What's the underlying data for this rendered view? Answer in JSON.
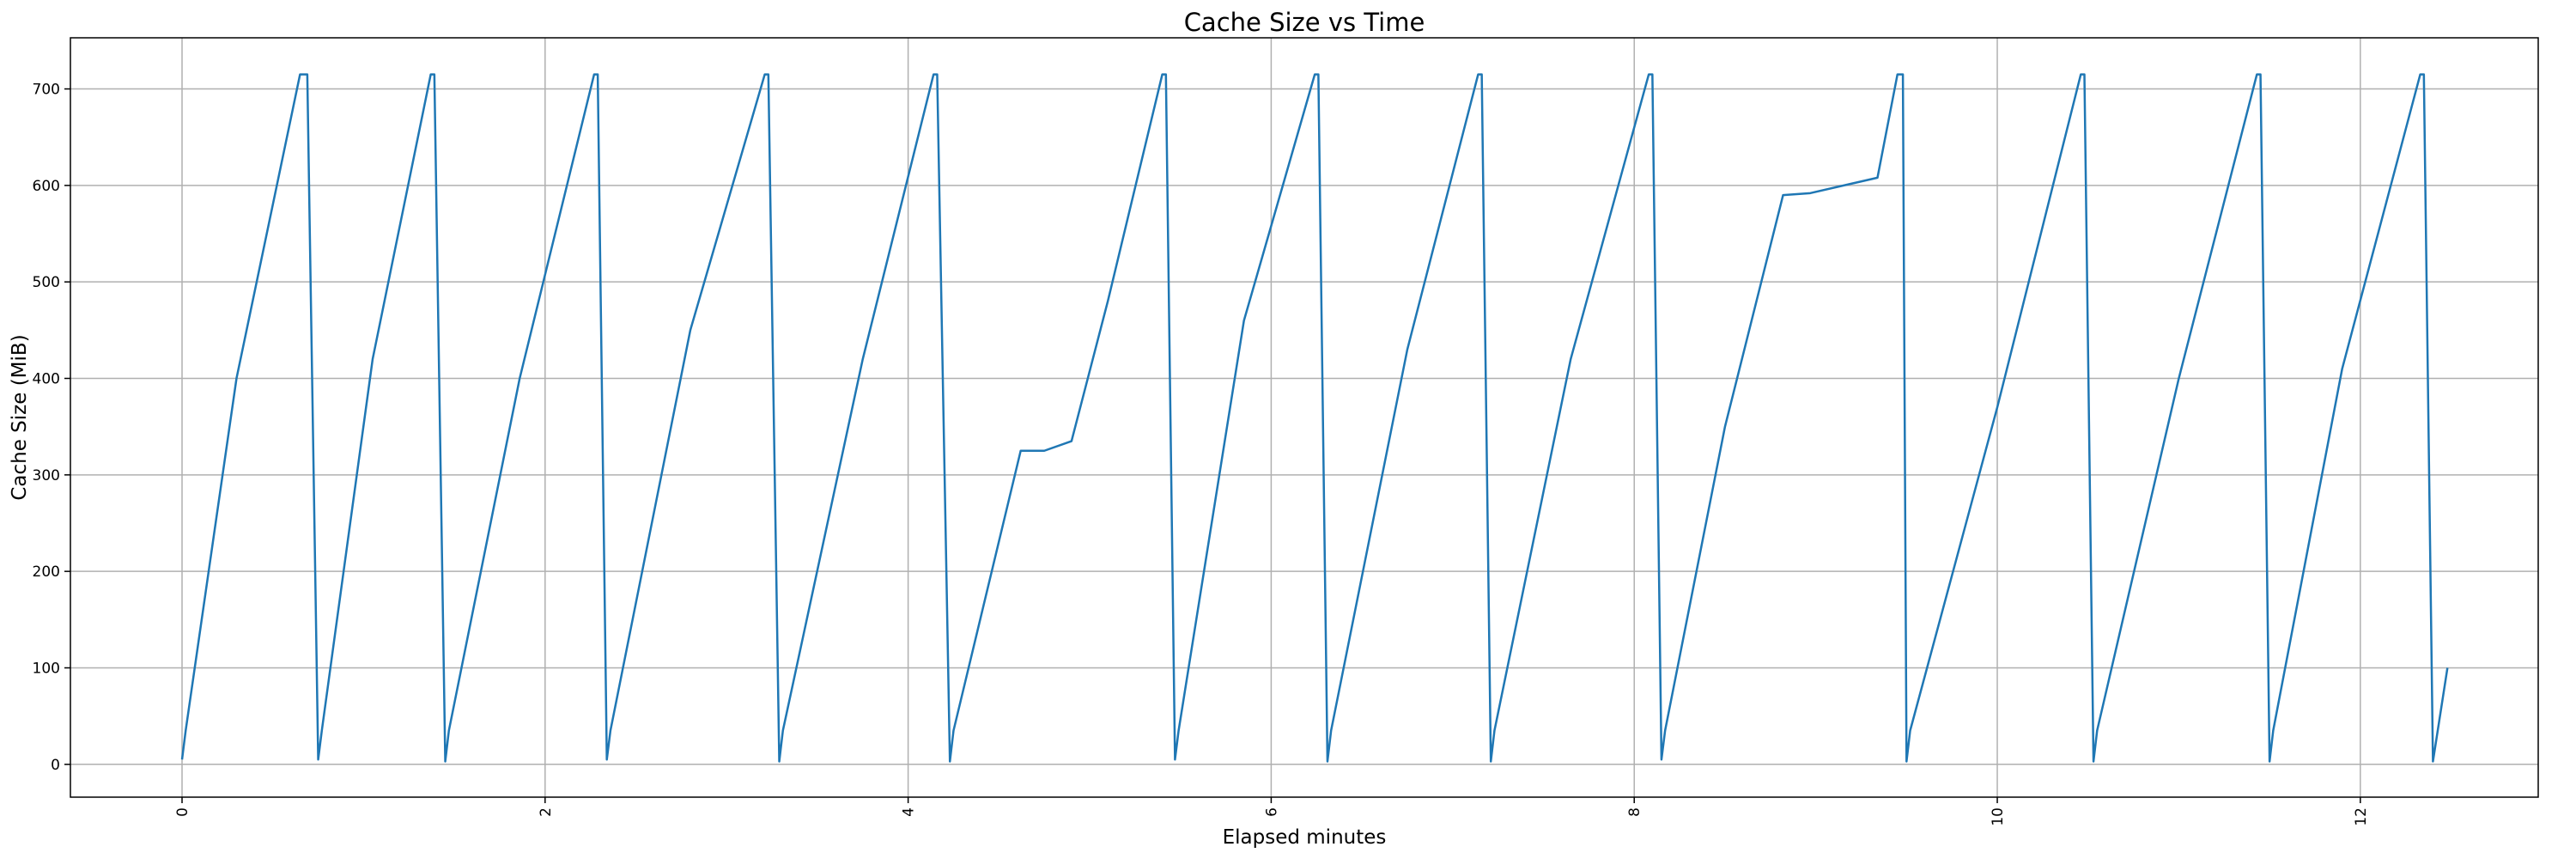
{
  "chart_data": {
    "type": "line",
    "title": "Cache Size vs Time",
    "x_label": "Elapsed minutes",
    "y_label": "Cache Size (MiB)",
    "x": [
      0.0,
      0.02,
      0.3,
      0.65,
      0.69,
      0.75,
      0.77,
      1.05,
      1.37,
      1.39,
      1.45,
      1.47,
      1.86,
      2.27,
      2.29,
      2.34,
      2.36,
      2.8,
      3.21,
      3.23,
      3.29,
      3.31,
      3.75,
      4.14,
      4.16,
      4.23,
      4.25,
      4.62,
      4.75,
      4.9,
      5.1,
      5.4,
      5.42,
      5.47,
      5.49,
      5.85,
      6.24,
      6.26,
      6.31,
      6.33,
      6.75,
      7.14,
      7.16,
      7.21,
      7.23,
      7.65,
      8.08,
      8.1,
      8.15,
      8.17,
      8.5,
      8.82,
      8.97,
      9.34,
      9.45,
      9.48,
      9.5,
      9.52,
      10.0,
      10.46,
      10.48,
      10.53,
      10.55,
      11.0,
      11.43,
      11.45,
      11.5,
      11.52,
      11.9,
      12.33,
      12.35,
      12.4,
      12.48
    ],
    "series": [
      {
        "name": "Cache Size",
        "color": "#1f77b4",
        "values": [
          5,
          35,
          400,
          715,
          715,
          5,
          35,
          420,
          715,
          715,
          3,
          35,
          400,
          715,
          715,
          5,
          35,
          450,
          715,
          715,
          3,
          35,
          420,
          715,
          715,
          3,
          35,
          325,
          325,
          335,
          480,
          715,
          715,
          5,
          35,
          460,
          715,
          715,
          3,
          35,
          430,
          715,
          715,
          3,
          35,
          420,
          715,
          715,
          5,
          35,
          350,
          590,
          592,
          608,
          715,
          715,
          3,
          35,
          370,
          715,
          715,
          3,
          35,
          400,
          715,
          715,
          3,
          35,
          410,
          715,
          715,
          3,
          100
        ]
      }
    ],
    "xlim": [
      -0.615,
      12.98
    ],
    "ylim": [
      -34,
      753
    ],
    "xticks": [
      0,
      2,
      4,
      6,
      8,
      10,
      12
    ],
    "yticks": [
      0,
      100,
      200,
      300,
      400,
      500,
      600,
      700
    ],
    "grid": true
  }
}
